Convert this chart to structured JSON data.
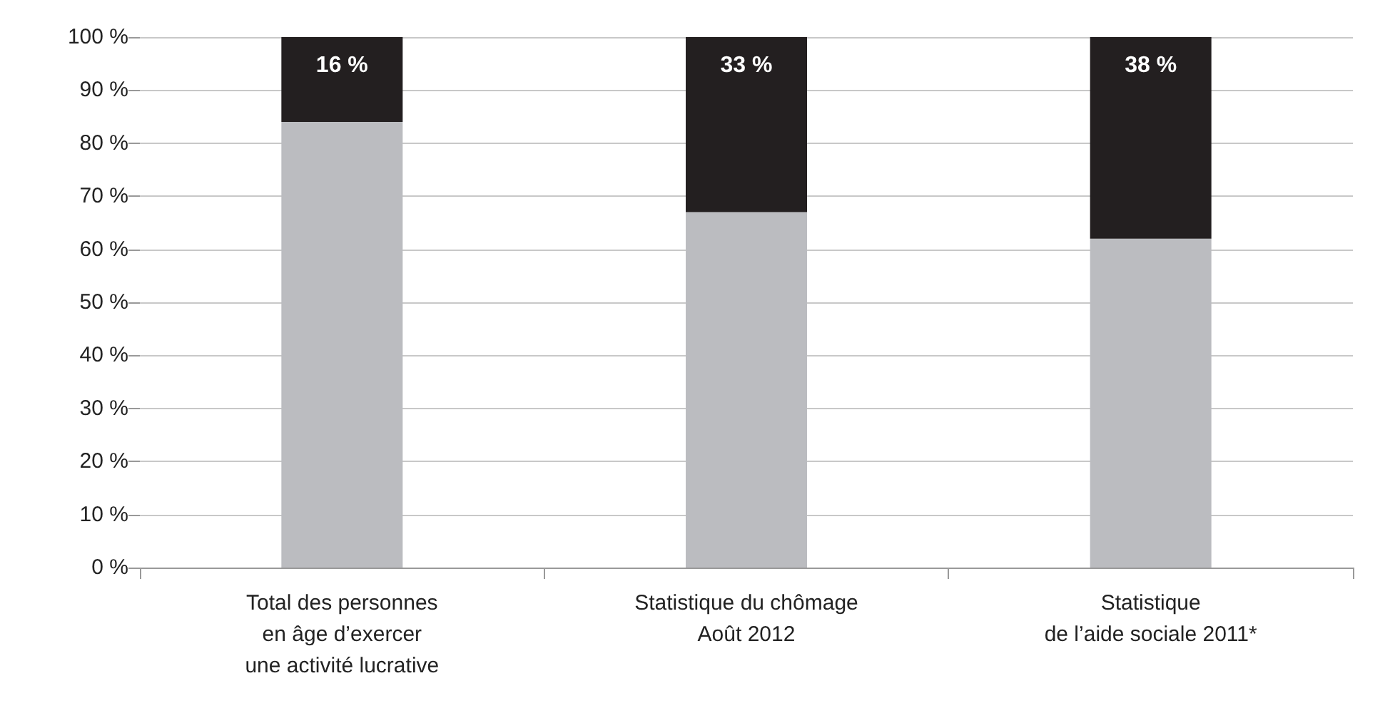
{
  "chart_data": {
    "type": "bar",
    "stacked": true,
    "categories": [
      "Total des personnes\nen âge d’exercer\nune activité lucrative",
      "Statistique du chômage\nAoût 2012",
      "Statistique\nde l’aide sociale 2011*"
    ],
    "series": [
      {
        "color": "#bbbcc0",
        "values": [
          84,
          67,
          62
        ]
      },
      {
        "color": "#231f20",
        "values": [
          16,
          33,
          38
        ],
        "value_labels": [
          "16 %",
          "33 %",
          "38 %"
        ]
      }
    ],
    "ylim": [
      0,
      100
    ],
    "yticks": [
      {
        "value": 0,
        "label": "0 %"
      },
      {
        "value": 10,
        "label": "10 %"
      },
      {
        "value": 20,
        "label": "20 %"
      },
      {
        "value": 30,
        "label": "30 %"
      },
      {
        "value": 40,
        "label": "40 %"
      },
      {
        "value": 50,
        "label": "50 %"
      },
      {
        "value": 60,
        "label": "60 %"
      },
      {
        "value": 70,
        "label": "70 %"
      },
      {
        "value": 80,
        "label": "80 %"
      },
      {
        "value": 90,
        "label": "90 %"
      },
      {
        "value": 100,
        "label": "100 %"
      }
    ],
    "grid": "y"
  }
}
